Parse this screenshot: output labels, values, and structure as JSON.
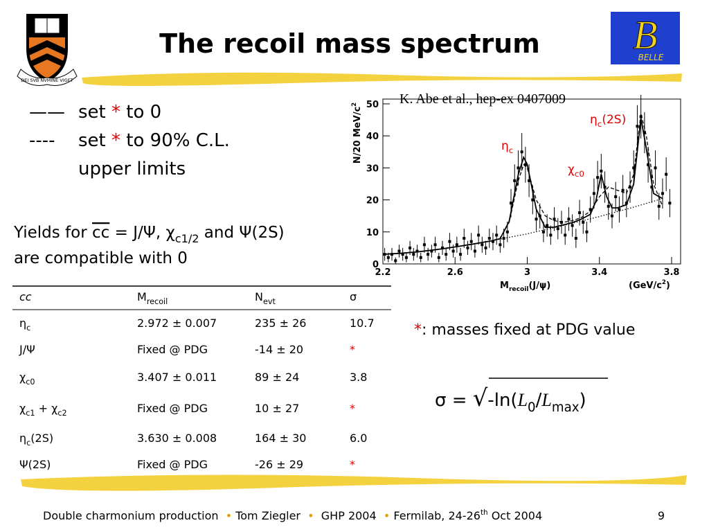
{
  "header": {
    "title": "The recoil mass spectrum"
  },
  "logos": {
    "princeton_motto": "DEI SVB NVMINE VIGET",
    "belle_letter": "B",
    "belle_name": "BELLE"
  },
  "notes": [
    {
      "symbol": "——",
      "text": [
        "set ",
        {
          "red": "*"
        },
        " to 0"
      ]
    },
    {
      "symbol": "----",
      "text": [
        "set ",
        {
          "red": "*"
        },
        " to 90% C.L."
      ]
    },
    {
      "text": [
        "upper limits"
      ]
    }
  ],
  "yields": [
    [
      "Yields for ",
      {
        "over": "cc"
      },
      " = J/Ψ, χ",
      {
        "sub": "c1/2"
      },
      " and Ψ(2S)"
    ],
    [
      "are compatible with 0"
    ]
  ],
  "citation": "K. Abe et al., hep-ex 0407009",
  "chart_data": {
    "type": "scatter",
    "xlabel": [
      "M",
      {
        "sub": "recoil"
      },
      "(J/ψ)"
    ],
    "xunit": [
      "(GeV/c",
      {
        "sup": "2"
      },
      ")"
    ],
    "ylabel": [
      "N/20 MeV/c",
      {
        "sup": "2"
      }
    ],
    "annotations": [
      [
        "η",
        {
          "sub": "c"
        }
      ],
      [
        "χ",
        {
          "sub": "c0"
        }
      ],
      [
        "η",
        {
          "sub": "c"
        },
        "(2S)"
      ]
    ],
    "xlim": [
      2.2,
      3.85
    ],
    "ylim": [
      0,
      51.5
    ],
    "xticks": [
      2.2,
      2.6,
      3,
      3.4,
      3.8
    ],
    "yticks": [
      0,
      10,
      20,
      30,
      40,
      50
    ],
    "series": [
      {
        "style": "points",
        "color": "#000000",
        "x": [
          2.21,
          2.23,
          2.25,
          2.27,
          2.29,
          2.31,
          2.33,
          2.35,
          2.37,
          2.39,
          2.41,
          2.43,
          2.45,
          2.47,
          2.49,
          2.51,
          2.53,
          2.55,
          2.57,
          2.59,
          2.61,
          2.63,
          2.65,
          2.67,
          2.69,
          2.71,
          2.73,
          2.75,
          2.77,
          2.79,
          2.81,
          2.83,
          2.85,
          2.87,
          2.89,
          2.91,
          2.93,
          2.95,
          2.97,
          2.99,
          3.01,
          3.03,
          3.05,
          3.07,
          3.09,
          3.11,
          3.13,
          3.15,
          3.17,
          3.19,
          3.21,
          3.23,
          3.25,
          3.27,
          3.29,
          3.31,
          3.33,
          3.35,
          3.37,
          3.39,
          3.41,
          3.43,
          3.45,
          3.47,
          3.49,
          3.51,
          3.53,
          3.55,
          3.57,
          3.59,
          3.61,
          3.63,
          3.65,
          3.67,
          3.69,
          3.71,
          3.73,
          3.75,
          3.77,
          3.79
        ],
        "values": [
          3,
          2,
          3,
          1,
          4,
          3,
          2,
          5,
          3,
          4,
          2,
          6,
          3,
          4,
          6,
          2,
          5,
          3,
          7,
          4,
          6,
          3,
          8,
          5,
          7,
          4,
          9,
          6,
          5,
          8,
          7,
          9,
          6,
          8,
          10,
          19,
          26,
          30,
          35,
          31,
          26,
          20,
          14,
          15,
          10,
          12,
          9,
          14,
          11,
          13,
          9,
          14,
          12,
          8,
          16,
          13,
          10,
          17,
          22,
          27,
          29,
          24,
          18,
          15,
          21,
          17,
          23,
          19,
          24,
          30,
          43,
          46,
          41,
          31,
          24,
          30,
          18,
          22,
          28,
          19
        ],
        "errors": [
          2,
          1.5,
          2,
          1,
          2,
          2,
          1.5,
          2.2,
          2,
          2,
          1.5,
          2.5,
          2,
          2,
          2.5,
          1.5,
          2.2,
          2,
          2.7,
          2,
          2.5,
          2,
          3,
          2.2,
          2.7,
          2,
          3,
          2.5,
          2.2,
          3,
          2.7,
          3,
          2.5,
          3,
          3.2,
          4.4,
          5.1,
          5.5,
          5.9,
          5.6,
          5.1,
          4.5,
          3.7,
          3.9,
          3.2,
          3.5,
          3,
          3.7,
          3.3,
          3.6,
          3,
          3.7,
          3.5,
          3,
          4,
          3.6,
          3.2,
          4.1,
          4.7,
          5.2,
          5.4,
          4.9,
          4.2,
          3.9,
          4.6,
          4.1,
          4.8,
          4.4,
          4.9,
          5.5,
          6.6,
          6.8,
          6.4,
          5.6,
          4.9,
          5.5,
          4.2,
          4.7,
          5.3,
          4.4
        ]
      },
      {
        "style": "solid",
        "color": "#000000",
        "x": [
          2.2,
          2.3,
          2.4,
          2.5,
          2.6,
          2.7,
          2.8,
          2.85,
          2.9,
          2.95,
          2.98,
          3.0,
          3.05,
          3.1,
          3.15,
          3.2,
          3.25,
          3.3,
          3.35,
          3.38,
          3.41,
          3.44,
          3.47,
          3.5,
          3.55,
          3.59,
          3.63,
          3.66,
          3.7,
          3.75
        ],
        "values": [
          3.0,
          3.3,
          3.8,
          4.5,
          5.3,
          6.2,
          7.2,
          7.9,
          13.3,
          27.9,
          33.3,
          31.1,
          17.1,
          11.4,
          11.5,
          12.2,
          12.9,
          14.0,
          15.5,
          19.5,
          28.0,
          21.0,
          17.5,
          17.5,
          18.5,
          25,
          45.5,
          36,
          22,
          20.4
        ]
      },
      {
        "style": "dashed",
        "color": "#000000",
        "x": [
          2.85,
          2.9,
          2.95,
          2.98,
          3.0,
          3.05,
          3.1,
          3.15,
          3.2,
          3.25,
          3.3,
          3.35,
          3.4,
          3.45,
          3.5,
          3.55,
          3.59,
          3.63,
          3.66,
          3.7,
          3.75
        ],
        "values": [
          8,
          13,
          26,
          31,
          30,
          20,
          15,
          13.5,
          13,
          13.5,
          14.5,
          16.5,
          21,
          24,
          23,
          22,
          28,
          47,
          40,
          25,
          18
        ]
      },
      {
        "style": "dotted",
        "color": "#000000",
        "x": [
          2.2,
          2.4,
          2.6,
          2.8,
          3.0,
          3.2,
          3.4,
          3.6,
          3.75
        ],
        "values": [
          3.0,
          3.8,
          5.3,
          7.2,
          9.4,
          12.0,
          14.8,
          17.9,
          20.4
        ]
      }
    ]
  },
  "table": {
    "header": [
      [
        {
          "italic": "cc"
        }
      ],
      [
        "M",
        {
          "sub": "recoil"
        }
      ],
      [
        "N",
        {
          "sub": "evt"
        }
      ],
      [
        "σ"
      ]
    ],
    "rows": [
      [
        [
          "η",
          {
            "sub": "c"
          }
        ],
        [
          "2.972 ± 0.007"
        ],
        [
          "235 ± 26"
        ],
        [
          "10.7"
        ]
      ],
      [
        [
          "J/Ψ"
        ],
        [
          "Fixed @ PDG"
        ],
        [
          "-14 ± 20"
        ],
        [
          {
            "red": "*"
          }
        ]
      ],
      [
        [
          "χ",
          {
            "sub": "c0"
          }
        ],
        [
          "3.407 ± 0.011"
        ],
        [
          "89 ± 24"
        ],
        [
          "3.8"
        ]
      ],
      [
        [
          "χ",
          {
            "sub": "c1"
          },
          " + χ",
          {
            "sub": "c2"
          }
        ],
        [
          "Fixed @ PDG"
        ],
        [
          "10 ± 27"
        ],
        [
          {
            "red": "*"
          }
        ]
      ],
      [
        [
          "η",
          {
            "sub": "c"
          },
          "(2S)"
        ],
        [
          "3.630 ± 0.008"
        ],
        [
          "164 ± 30"
        ],
        [
          "6.0"
        ]
      ],
      [
        [
          "Ψ(2S)"
        ],
        [
          "Fixed @ PDG"
        ],
        [
          "-26 ± 29"
        ],
        [
          {
            "red": "*"
          }
        ]
      ]
    ]
  },
  "note": [
    {
      "red": "*"
    },
    ": masses fixed at PDG value"
  ],
  "formula": [
    "σ = ",
    {
      "root": "√"
    },
    "-ln(",
    {
      "script": "L"
    },
    {
      "sub": "0"
    },
    "/",
    {
      "script": "L"
    },
    {
      "sub": "max"
    },
    ")"
  ],
  "footer": {
    "text": [
      "Double charmonium production  ",
      {
        "bullet": "•"
      },
      " Tom Ziegler  ",
      {
        "bullet": "•"
      },
      "  GHP 2004  ",
      {
        "bullet": "•"
      },
      " Fermilab, 24-26",
      {
        "sup": "th"
      },
      " Oct 2004"
    ],
    "page": "9"
  }
}
